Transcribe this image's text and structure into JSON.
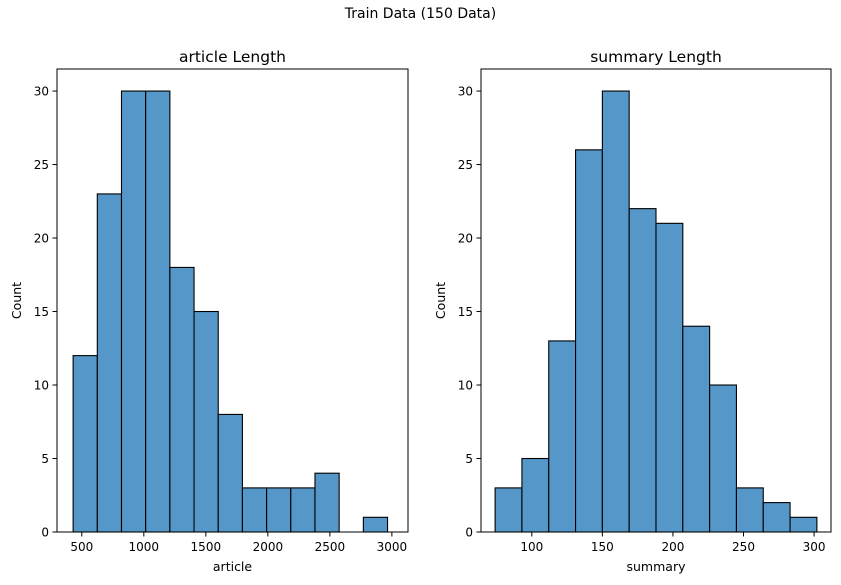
{
  "figure": {
    "suptitle": "Train Data (150 Data)",
    "bar_color": "#5497c8",
    "edge_color": "#000000"
  },
  "chart_data": [
    {
      "type": "bar",
      "title": "article Length",
      "xlabel": "article",
      "ylabel": "Count",
      "xlim": [
        300,
        3130
      ],
      "ylim": [
        0,
        31.5
      ],
      "xticks": [
        500,
        1000,
        1500,
        2000,
        2500,
        3000
      ],
      "yticks": [
        0,
        5,
        10,
        15,
        20,
        25,
        30
      ],
      "grid": false,
      "bins": [
        {
          "x0": 430,
          "x1": 625,
          "count": 12
        },
        {
          "x0": 625,
          "x1": 820,
          "count": 23
        },
        {
          "x0": 820,
          "x1": 1015,
          "count": 30
        },
        {
          "x0": 1015,
          "x1": 1210,
          "count": 30
        },
        {
          "x0": 1210,
          "x1": 1405,
          "count": 18
        },
        {
          "x0": 1405,
          "x1": 1600,
          "count": 15
        },
        {
          "x0": 1600,
          "x1": 1795,
          "count": 8
        },
        {
          "x0": 1795,
          "x1": 1990,
          "count": 3
        },
        {
          "x0": 1990,
          "x1": 2185,
          "count": 3
        },
        {
          "x0": 2185,
          "x1": 2380,
          "count": 3
        },
        {
          "x0": 2380,
          "x1": 2575,
          "count": 4
        },
        {
          "x0": 2575,
          "x1": 2770,
          "count": 0
        },
        {
          "x0": 2770,
          "x1": 2965,
          "count": 1
        }
      ]
    },
    {
      "type": "bar",
      "title": "summary Length",
      "xlabel": "summary",
      "ylabel": "Count",
      "xlim": [
        64,
        312
      ],
      "ylim": [
        0,
        31.5
      ],
      "xticks": [
        100,
        150,
        200,
        250,
        300
      ],
      "yticks": [
        0,
        5,
        10,
        15,
        20,
        25,
        30
      ],
      "grid": false,
      "bins": [
        {
          "x0": 74,
          "x1": 93,
          "count": 3
        },
        {
          "x0": 93,
          "x1": 112,
          "count": 5
        },
        {
          "x0": 112,
          "x1": 131,
          "count": 13
        },
        {
          "x0": 131,
          "x1": 150,
          "count": 26
        },
        {
          "x0": 150,
          "x1": 169,
          "count": 30
        },
        {
          "x0": 169,
          "x1": 188,
          "count": 22
        },
        {
          "x0": 188,
          "x1": 207,
          "count": 21
        },
        {
          "x0": 207,
          "x1": 226,
          "count": 14
        },
        {
          "x0": 226,
          "x1": 245,
          "count": 10
        },
        {
          "x0": 245,
          "x1": 264,
          "count": 3
        },
        {
          "x0": 264,
          "x1": 283,
          "count": 2
        },
        {
          "x0": 283,
          "x1": 302,
          "count": 1
        }
      ]
    }
  ]
}
